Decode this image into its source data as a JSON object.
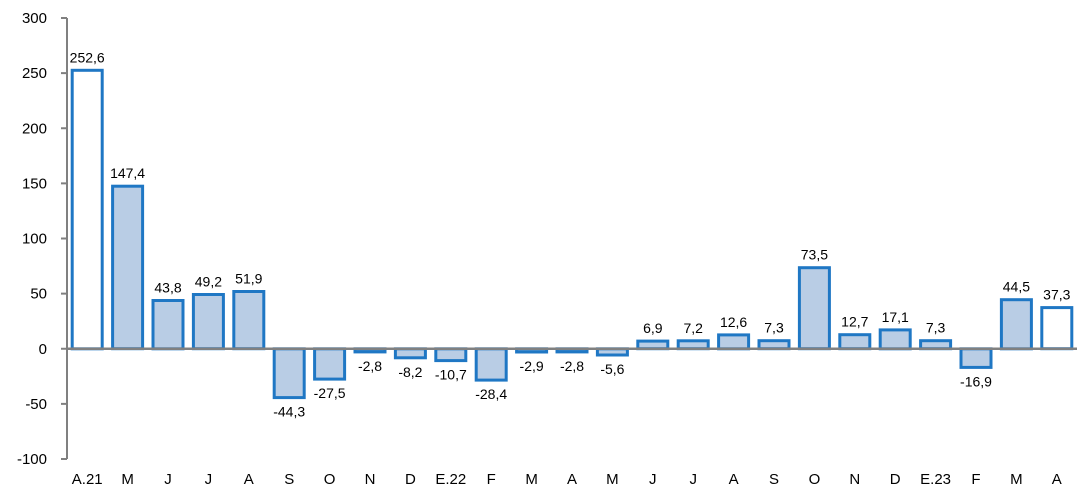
{
  "chart_data": {
    "type": "bar",
    "title": "",
    "xlabel": "",
    "ylabel": "",
    "ylim": [
      -100,
      300
    ],
    "yticks": [
      "300",
      "250",
      "200",
      "150",
      "100",
      "50",
      "0",
      "-50",
      "-100"
    ],
    "ytick_values": [
      300,
      250,
      200,
      150,
      100,
      50,
      0,
      -50,
      -100
    ],
    "grid": false,
    "legend": "none",
    "categories": [
      "A.21",
      "M",
      "J",
      "J",
      "A",
      "S",
      "O",
      "N",
      "D",
      "E.22",
      "F",
      "M",
      "A",
      "M",
      "J",
      "J",
      "A",
      "S",
      "O",
      "N",
      "D",
      "E.23",
      "F",
      "M",
      "A"
    ],
    "values": [
      252.6,
      147.4,
      43.8,
      49.2,
      51.9,
      -44.3,
      -27.5,
      -2.8,
      -8.2,
      -10.7,
      -28.4,
      -2.9,
      -2.8,
      -5.6,
      6.9,
      7.2,
      12.6,
      7.3,
      73.5,
      12.7,
      17.1,
      7.3,
      -16.9,
      44.5,
      37.3
    ],
    "value_labels": [
      "252,6",
      "147,4",
      "43,8",
      "49,2",
      "51,9",
      "-44,3",
      "-27,5",
      "-2,8",
      "-8,2",
      "-10,7",
      "-28,4",
      "-2,9",
      "-2,8",
      "-5,6",
      "6,9",
      "7,2",
      "12,6",
      "7,3",
      "73,5",
      "12,7",
      "17,1",
      "7,3",
      "-16,9",
      "44,5",
      "37,3"
    ],
    "highlighted": [
      true,
      false,
      false,
      false,
      false,
      false,
      false,
      false,
      false,
      false,
      false,
      false,
      false,
      false,
      false,
      false,
      false,
      false,
      false,
      false,
      false,
      false,
      false,
      false,
      true
    ],
    "colors": {
      "bar_fill": "#b9cde5",
      "highlight_fill": "#ffffff",
      "bar_stroke": "#1f77c4",
      "axis": "#808080"
    }
  }
}
